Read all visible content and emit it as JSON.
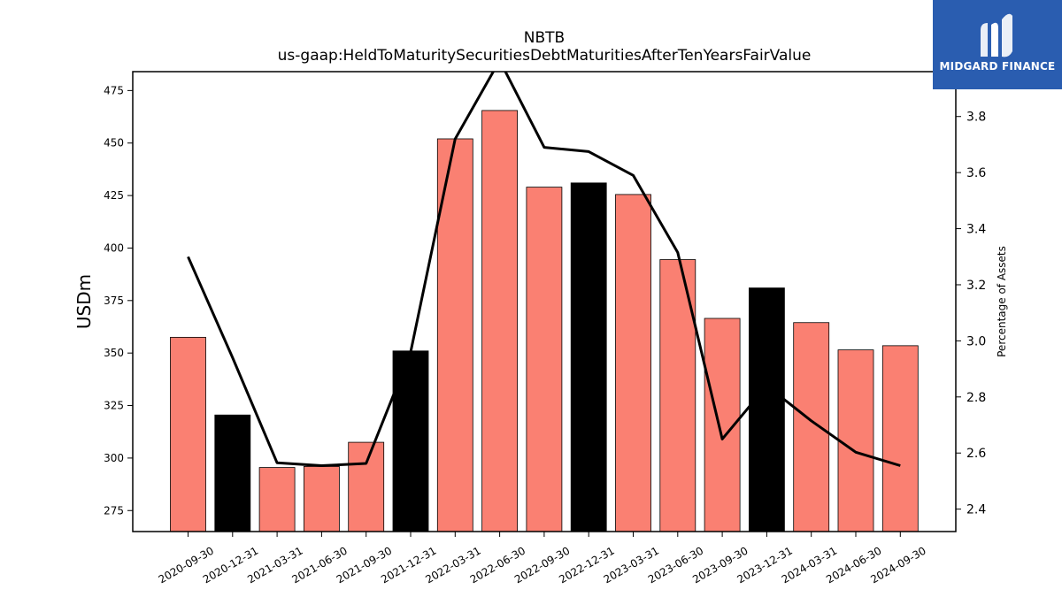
{
  "chart_data": {
    "type": "bar",
    "title": "NBTB",
    "subtitle": "us-gaap:HeldToMaturitySecuritiesDebtMaturitiesAfterTenYearsFairValue",
    "ylabel": "USDm",
    "y2label": "Percentage of Assets",
    "categories": [
      "2020-09-30",
      "2020-12-31",
      "2021-03-31",
      "2021-06-30",
      "2021-09-30",
      "2021-12-31",
      "2022-03-31",
      "2022-06-30",
      "2022-09-30",
      "2022-12-31",
      "2023-03-31",
      "2023-06-30",
      "2023-09-30",
      "2023-12-31",
      "2024-03-31",
      "2024-06-30",
      "2024-09-30"
    ],
    "series": [
      {
        "kind": "bar",
        "axis": "left",
        "values": [
          357.5,
          320.5,
          295.5,
          296,
          307.5,
          351,
          452,
          465.5,
          429,
          431,
          425.5,
          394.5,
          366.5,
          381,
          364.5,
          351.5,
          353.5
        ],
        "colors": [
          "#fa8072",
          "#000000",
          "#fa8072",
          "#fa8072",
          "#fa8072",
          "#000000",
          "#fa8072",
          "#fa8072",
          "#fa8072",
          "#000000",
          "#fa8072",
          "#fa8072",
          "#fa8072",
          "#000000",
          "#fa8072",
          "#fa8072",
          "#fa8072"
        ]
      },
      {
        "kind": "line",
        "axis": "right",
        "color": "#000000",
        "values": [
          3.3,
          2.94,
          2.565,
          2.555,
          2.563,
          2.96,
          3.72,
          4.0,
          3.69,
          3.675,
          3.59,
          3.315,
          2.65,
          2.84,
          2.715,
          2.603,
          2.555
        ]
      }
    ],
    "ylim": [
      265,
      484
    ],
    "y2lim": [
      2.32,
      3.96
    ],
    "yticks": [
      275,
      300,
      325,
      350,
      375,
      400,
      425,
      450,
      475
    ],
    "y2ticks": [
      2.4,
      2.6,
      2.8,
      3.0,
      3.2,
      3.4,
      3.6,
      3.8
    ],
    "y2tick_labels": [
      "2.4",
      "2.6",
      "2.8",
      "3.0",
      "3.2",
      "3.4",
      "3.6",
      "3.8"
    ],
    "grid": false
  },
  "logo": {
    "text": "MIDGARD FINANCE",
    "color": "#2a5db0"
  }
}
